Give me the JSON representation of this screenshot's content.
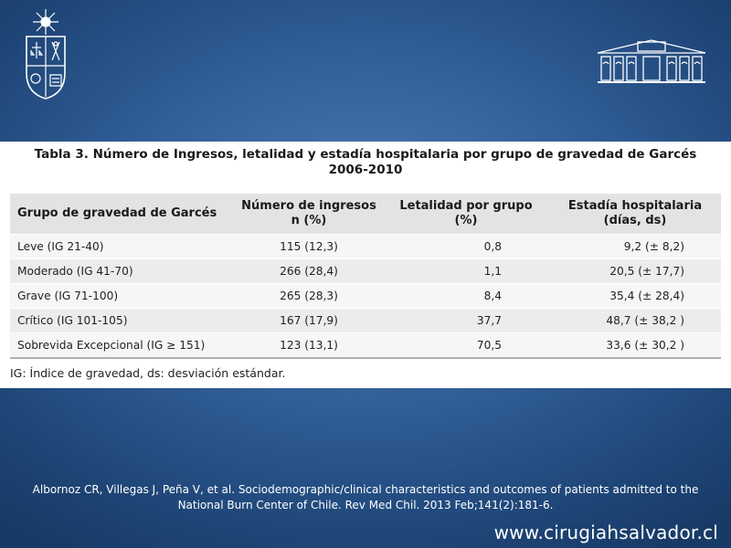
{
  "table": {
    "caption_line1": "Tabla 3. Número de Ingresos, letalidad y estadía hospitalaria por grupo de gravedad de Garcés",
    "caption_line2": "2006-2010",
    "headers": [
      {
        "line1": "Grupo de gravedad de Garcés",
        "line2": ""
      },
      {
        "line1": "Número de ingresos",
        "line2": "n (%)"
      },
      {
        "line1": "Letalidad por grupo",
        "line2": "(%)"
      },
      {
        "line1": "Estadía hospitalaria",
        "line2": "(días, ds)"
      }
    ],
    "rows": [
      [
        "Leve (IG 21-40)",
        "115 (12,3)",
        "0,8",
        "9,2 (± 8,2)"
      ],
      [
        "Moderado (IG 41-70)",
        "266 (28,4)",
        "1,1",
        "20,5 (± 17,7)"
      ],
      [
        "Grave (IG 71-100)",
        "265 (28,3)",
        "8,4",
        "35,4 (± 28,4)"
      ],
      [
        "Crítico (IG 101-105)",
        "167 (17,9)",
        "37,7",
        "48,7 (± 38,2 )"
      ],
      [
        "Sobrevida Excepcional (IG ≥ 151)",
        "123 (13,1)",
        "70,5",
        "33,6 (± 30,2 )"
      ]
    ],
    "footnote": "IG: Índice de gravedad, ds: desviación estándar."
  },
  "reference_line1": "Albornoz CR, Villegas J, Peña V, et al. Sociodemographic/clinical characteristics and outcomes of patients admitted to the",
  "reference_line2": "National Burn Center of Chile. Rev Med Chil. 2013 Feb;141(2):181-6.",
  "website": "www.cirugiahsalvador.cl",
  "colors": {
    "background": "#2d5a94",
    "table_header": "#e3e3e3",
    "text_white": "#ffffff"
  },
  "icons": [
    "university-of-chile-crest-icon",
    "hospital-building-icon"
  ]
}
